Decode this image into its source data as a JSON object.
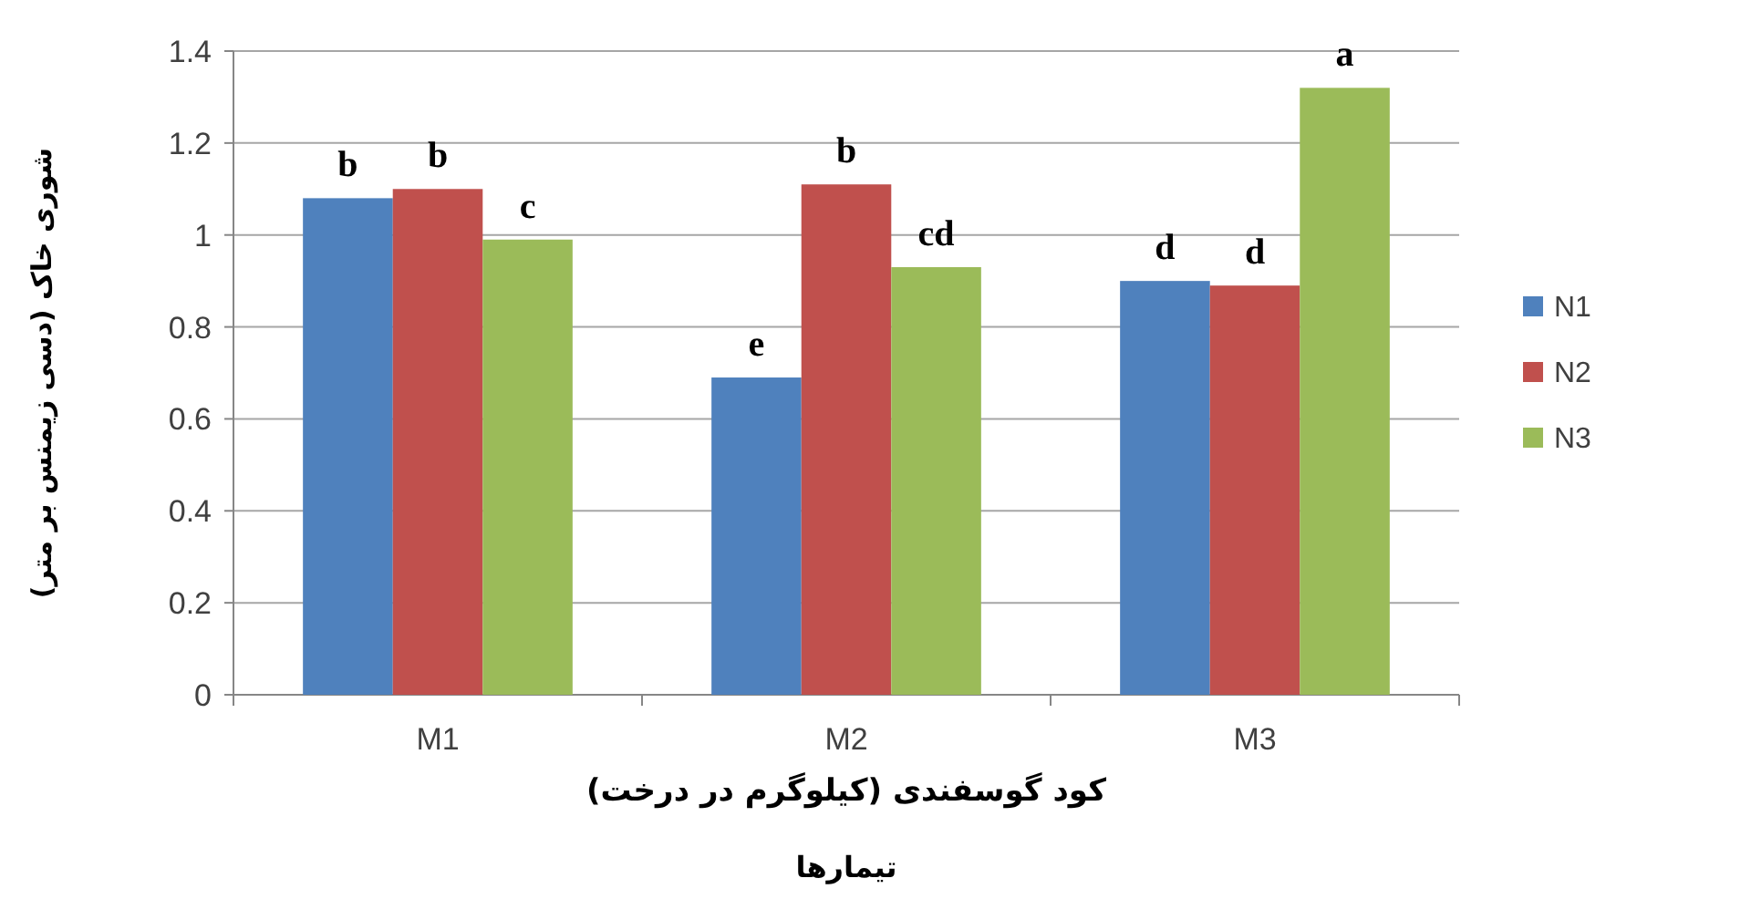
{
  "chart_data": {
    "type": "bar",
    "xlabel": "کود گوسفندی (کیلوگرم در درخت)",
    "ylabel": "شوری خاک (دسی زیمنس بر متر)",
    "annotations": [
      "تیمارها"
    ],
    "categories": [
      "M1",
      "M2",
      "M3"
    ],
    "series": [
      {
        "name": "N1",
        "color": "#4f81bd",
        "values": [
          1.08,
          0.69,
          0.9
        ],
        "value_labels": [
          "b",
          "e",
          "d"
        ]
      },
      {
        "name": "N2",
        "color": "#c0504d",
        "values": [
          1.1,
          1.11,
          0.89
        ],
        "value_labels": [
          "b",
          "b",
          "d"
        ]
      },
      {
        "name": "N3",
        "color": "#9bbb59",
        "values": [
          0.99,
          0.93,
          1.32
        ],
        "value_labels": [
          "c",
          "cd",
          "a"
        ]
      }
    ],
    "ylim": [
      0,
      1.4
    ],
    "yticks": [
      0,
      0.2,
      0.4,
      0.6,
      0.8,
      1,
      1.2,
      1.4
    ],
    "grid": "y",
    "legend": "right"
  }
}
